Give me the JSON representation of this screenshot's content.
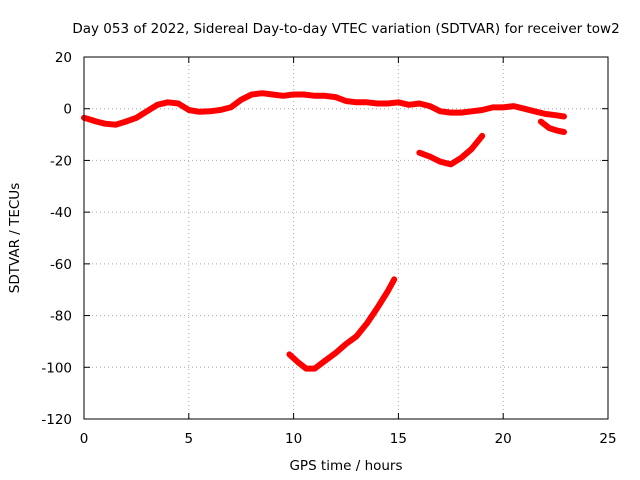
{
  "chart_data": {
    "type": "line",
    "title": "Day 053 of 2022, Sidereal Day-to-day VTEC variation (SDTVAR) for receiver tow2",
    "xlabel": "GPS time / hours",
    "ylabel": "SDTVAR / TECUs",
    "xlim": [
      0,
      25
    ],
    "ylim": [
      -120,
      20
    ],
    "xticks": [
      0,
      5,
      10,
      15,
      20,
      25
    ],
    "yticks": [
      20,
      0,
      -20,
      -40,
      -60,
      -80,
      -100,
      -120
    ],
    "grid": true,
    "color": "#ff0000",
    "series": [
      {
        "name": "main",
        "x": [
          0.0,
          0.3,
          0.6,
          1.0,
          1.5,
          2.0,
          2.5,
          3.0,
          3.5,
          4.0,
          4.5,
          5.0,
          5.5,
          6.0,
          6.5,
          7.0,
          7.5,
          8.0,
          8.5,
          9.0,
          9.5,
          10.0,
          10.5,
          11.0,
          11.5,
          12.0,
          12.5,
          13.0,
          13.5,
          14.0,
          14.5,
          15.0,
          15.5,
          16.0,
          16.5,
          17.0,
          17.5,
          18.0,
          18.5,
          19.0,
          19.5,
          20.0,
          20.5,
          21.0,
          21.5,
          22.0,
          22.5,
          22.9
        ],
        "y": [
          -3.5,
          -4.2,
          -5.0,
          -5.8,
          -6.2,
          -5.0,
          -3.5,
          -1.0,
          1.5,
          2.5,
          2.0,
          -0.5,
          -1.2,
          -1.0,
          -0.5,
          0.5,
          3.5,
          5.5,
          6.0,
          5.5,
          5.0,
          5.5,
          5.5,
          5.0,
          5.0,
          4.5,
          3.0,
          2.5,
          2.5,
          2.0,
          2.0,
          2.5,
          1.5,
          2.0,
          1.0,
          -1.0,
          -1.5,
          -1.5,
          -1.0,
          -0.5,
          0.5,
          0.5,
          1.0,
          0.0,
          -1.0,
          -2.0,
          -2.5,
          -3.0
        ]
      },
      {
        "name": "late-dip",
        "x": [
          21.8,
          22.2,
          22.6,
          22.9
        ],
        "y": [
          -5.0,
          -7.5,
          -8.5,
          -9.0
        ]
      },
      {
        "name": "mid-negative",
        "x": [
          16.0,
          16.5,
          17.0,
          17.5,
          18.0,
          18.5,
          19.0
        ],
        "y": [
          -17.0,
          -18.5,
          -20.5,
          -21.5,
          -19.0,
          -15.5,
          -10.5
        ]
      },
      {
        "name": "deep-negative",
        "x": [
          9.8,
          10.2,
          10.6,
          11.0,
          11.5,
          12.0,
          12.5,
          13.0,
          13.5,
          14.0,
          14.5,
          14.8
        ],
        "y": [
          -95.0,
          -98.0,
          -100.5,
          -100.5,
          -97.5,
          -94.5,
          -91.0,
          -88.0,
          -83.0,
          -77.0,
          -70.5,
          -66.0
        ]
      }
    ]
  }
}
